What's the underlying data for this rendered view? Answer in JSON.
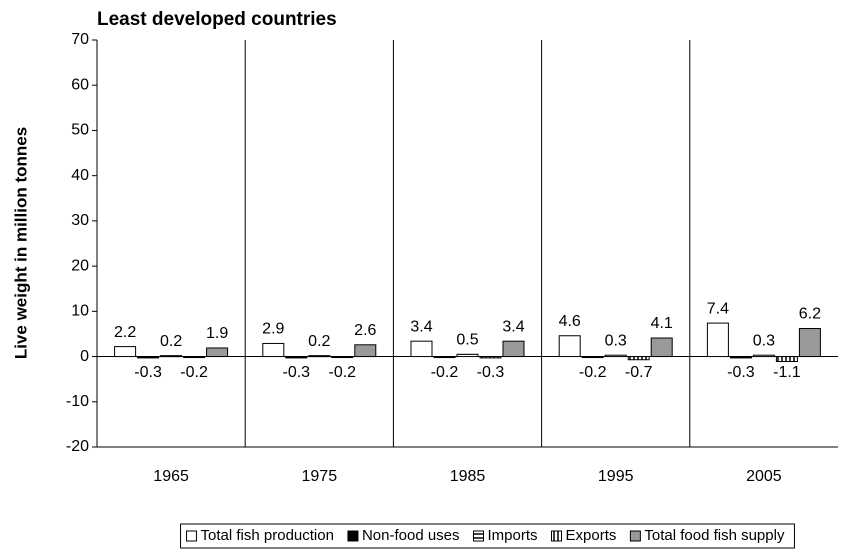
{
  "chart_data": {
    "type": "bar",
    "title": "Least developed countries",
    "y_label": "Live weight in million tonnes",
    "categories": [
      "1965",
      "1975",
      "1985",
      "1995",
      "2005"
    ],
    "series": [
      {
        "name": "Total fish production",
        "color": "#ffffff",
        "values": [
          2.2,
          2.9,
          3.4,
          4.6,
          7.4
        ]
      },
      {
        "name": "Non-food uses",
        "color": "#000000",
        "values": [
          -0.3,
          -0.3,
          -0.2,
          -0.2,
          -0.3
        ]
      },
      {
        "name": "Imports",
        "color": "#ffffff",
        "hatch": "horizontal",
        "values": [
          0.2,
          0.2,
          0.5,
          0.3,
          0.3
        ]
      },
      {
        "name": "Exports",
        "color": "#ffffff",
        "hatch": "vertical",
        "values": [
          -0.2,
          -0.2,
          -0.3,
          -0.7,
          -1.1
        ]
      },
      {
        "name": "Total food fish supply",
        "color": "#999999",
        "values": [
          1.9,
          2.6,
          3.4,
          4.1,
          6.2
        ]
      }
    ],
    "ylim": [
      -20,
      70
    ],
    "yticks": [
      -20,
      -10,
      0,
      10,
      20,
      30,
      40,
      50,
      60,
      70
    ],
    "legend": "bottom"
  }
}
